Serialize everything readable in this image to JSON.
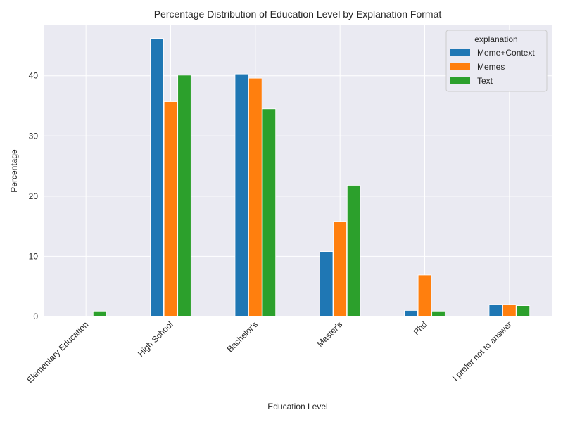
{
  "chart_data": {
    "type": "bar",
    "title": "Percentage Distribution of Education Level by Explanation Format",
    "xlabel": "Education Level",
    "ylabel": "Percentage",
    "ylim": [
      0,
      48.5
    ],
    "yticks": [
      0,
      10,
      20,
      30,
      40
    ],
    "grid": true,
    "legend": {
      "title": "explanation",
      "placement": "top-right"
    },
    "categories": [
      "Elementary Education",
      "High School",
      "Bachelor's",
      "Master's",
      "Phd",
      "I prefer not to answer"
    ],
    "series": [
      {
        "name": "Meme+Context",
        "color": "#1f77b4",
        "values": [
          0,
          46.2,
          40.3,
          10.8,
          1.0,
          2.0
        ]
      },
      {
        "name": "Memes",
        "color": "#ff7f0e",
        "values": [
          0,
          35.7,
          39.6,
          15.8,
          6.9,
          2.0
        ]
      },
      {
        "name": "Text",
        "color": "#2ca02c",
        "values": [
          0.9,
          40.1,
          34.5,
          21.8,
          0.9,
          1.8
        ]
      }
    ]
  }
}
